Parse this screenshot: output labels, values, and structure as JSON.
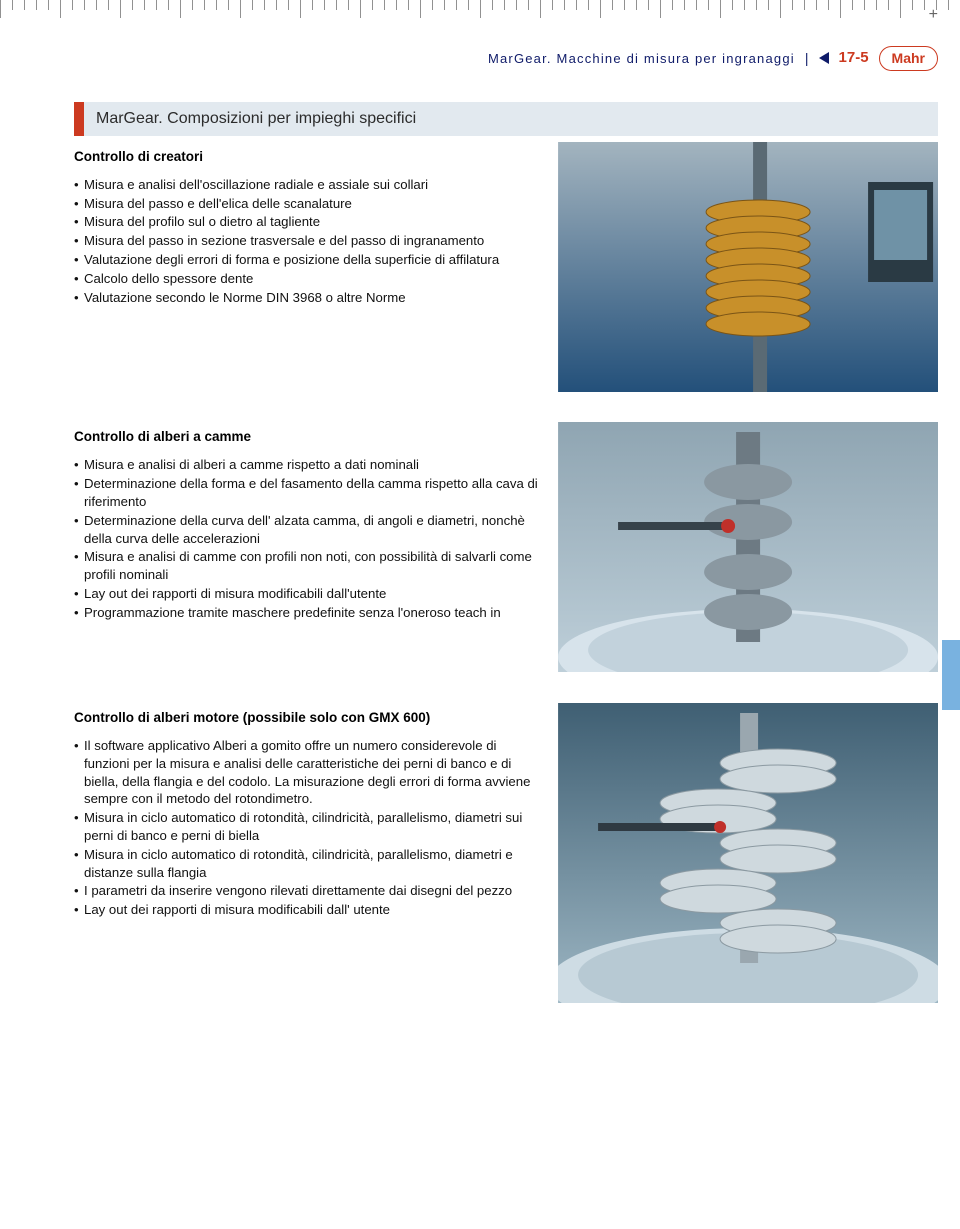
{
  "header": {
    "title": "MarGear. Macchine di misura per ingranaggi",
    "page_number": "17-5",
    "brand": "Mahr"
  },
  "page_title": "MarGear. Composizioni per impieghi specifici",
  "colors": {
    "title_tab": "#cc3a20",
    "title_bg": "#e2e9ef",
    "header_text": "#0f1b69",
    "accent_red": "#cc3a20",
    "side_tab": "#79b2e0"
  },
  "sections": [
    {
      "heading": "Controllo di creatori",
      "items": [
        "Misura e analisi dell'oscillazione radiale e assiale sui collari",
        "Misura del passo e dell'elica delle scanalature",
        "Misura del profilo sul o dietro al tagliente",
        "Misura del passo in sezione trasversale e del passo di ingranamento",
        "Valutazione degli errori di forma e posizione della superficie di affilatura",
        "Calcolo dello spessore dente",
        "Valutazione secondo le Norme DIN 3968 o altre Norme"
      ],
      "figure": {
        "alt": "Creatore ingranaggi dorato su macchina di misura",
        "bg_top": "#a3b4bf",
        "bg_bottom": "#23507a",
        "tool_color": "#c8902a"
      }
    },
    {
      "heading": "Controllo di alberi a camme",
      "items": [
        "Misura e analisi di alberi a camme rispetto a dati nominali",
        "Determinazione della forma e del fasamento della camma rispetto alla cava di riferimento",
        "Determinazione della curva dell' alzata camma, di angoli e diametri, nonchè della curva delle accelerazioni",
        "Misura e analisi di camme con profili non noti, con possibilità di salvarli come profili nominali",
        "Lay out dei rapporti di misura modificabili dall'utente",
        "Programmazione tramite maschere predefinite senza l'oneroso teach in"
      ],
      "figure": {
        "alt": "Albero a camme in misura su tavola",
        "bg_top": "#8fa5b2",
        "bg_bottom": "#becfd9",
        "shaft_color": "#6d7a83"
      }
    },
    {
      "heading": "Controllo di alberi motore (possibile solo con GMX 600)",
      "items": [
        "Il software applicativo Alberi a gomito offre un numero considerevole di funzioni per la misura e analisi delle caratteristiche dei perni di banco e di biella, della flangia e del codolo. La misurazione degli errori di forma avviene sempre con il metodo del rotondimetro.",
        "Misura in ciclo automatico di rotondità, cilindricità, parallelismo, diametri sui perni di banco e perni di biella",
        "Misura in ciclo automatico di rotondità, cilindricità, parallelismo, diametri e distanze sulla flangia",
        "I parametri da inserire vengono rilevati direttamente dai disegni del pezzo",
        "Lay out dei rapporti di misura modificabili dall' utente"
      ],
      "figure": {
        "alt": "Albero motore su macchina di misura",
        "bg_top": "#3f5f73",
        "bg_bottom": "#9db6c3",
        "crank_color": "#cfd9de"
      }
    }
  ]
}
